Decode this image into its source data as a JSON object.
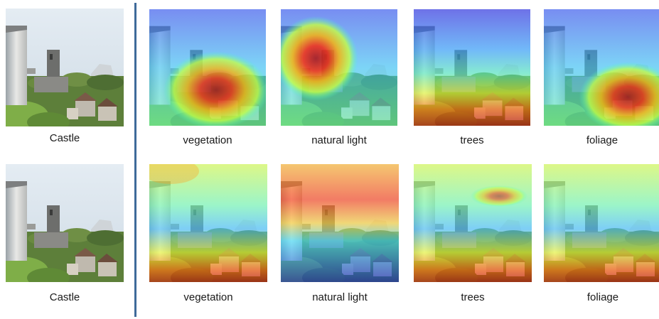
{
  "rows": [
    {
      "source_caption": "Castle",
      "heatmaps": [
        {
          "caption": "vegetation",
          "hot": "lower-center"
        },
        {
          "caption": "natural light",
          "hot": "upper-left"
        },
        {
          "caption": "trees",
          "hot": "bottom"
        },
        {
          "caption": "foliage",
          "hot": "lower-right"
        }
      ]
    },
    {
      "source_caption": "Castle",
      "heatmaps": [
        {
          "caption": "vegetation",
          "hot": "bottom"
        },
        {
          "caption": "natural light",
          "hot": "top"
        },
        {
          "caption": "trees",
          "hot": "bottom"
        },
        {
          "caption": "foliage",
          "hot": "bottom"
        }
      ]
    }
  ],
  "colors": {
    "divider": "#3f6a9a",
    "sky": "#dfe8ef",
    "foliage": "#5d7f3a"
  }
}
